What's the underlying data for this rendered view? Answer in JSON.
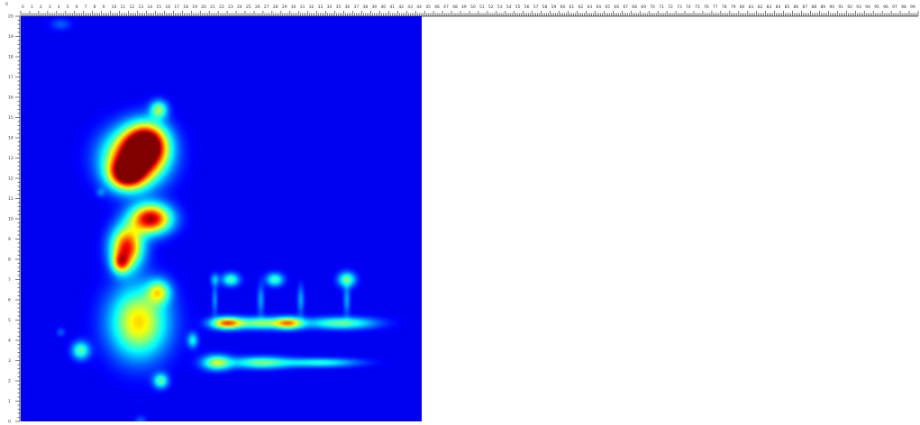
{
  "chart_data": {
    "type": "heatmap",
    "title": "",
    "xlabel": "",
    "ylabel": "",
    "xlim": [
      0,
      20
    ],
    "ylim": [
      0,
      20
    ],
    "corner_label": "0",
    "x_ruler": {
      "labels": [
        "0",
        "1",
        "2",
        "3",
        "4",
        "5",
        "6",
        "7",
        "8",
        "9",
        "10",
        "11",
        "12",
        "13",
        "14",
        "15",
        "16",
        "17",
        "18",
        "19",
        "20"
      ],
      "extended_labels": [
        "21",
        "22",
        "23",
        "24",
        "25",
        "26",
        "27",
        "28",
        "29",
        "30",
        "31",
        "32",
        "33",
        "34",
        "35",
        "36",
        "37",
        "38",
        "39",
        "40",
        "41",
        "42",
        "43",
        "44",
        "45",
        "46",
        "47",
        "48",
        "49",
        "50",
        "51",
        "52",
        "53",
        "54",
        "55",
        "56",
        "57",
        "58",
        "59",
        "60",
        "61",
        "62",
        "63",
        "64",
        "65",
        "66",
        "67",
        "68",
        "69",
        "70",
        "71",
        "72",
        "73",
        "74",
        "75",
        "76",
        "77",
        "78",
        "79",
        "80",
        "81",
        "82",
        "83",
        "84",
        "85",
        "86",
        "87",
        "88",
        "89",
        "90",
        "91",
        "92",
        "93",
        "94",
        "95",
        "96",
        "97",
        "98",
        "99",
        "100"
      ]
    },
    "y_ticks": [
      "0",
      "1",
      "2",
      "3",
      "4",
      "5",
      "6",
      "7",
      "8",
      "9",
      "10",
      "11",
      "12",
      "13",
      "14",
      "15",
      "16",
      "17",
      "18",
      "19",
      "20"
    ],
    "grid": false,
    "colormap": "jet",
    "background_color": "#00009c",
    "blobs": [
      {
        "x": 5.7,
        "y": 13.0,
        "sx": 1.0,
        "sy": 0.9,
        "peak": 1.0
      },
      {
        "x": 6.3,
        "y": 13.7,
        "sx": 0.7,
        "sy": 0.7,
        "peak": 0.9
      },
      {
        "x": 5.3,
        "y": 12.2,
        "sx": 0.6,
        "sy": 0.5,
        "peak": 0.8
      },
      {
        "x": 6.9,
        "y": 15.4,
        "sx": 0.3,
        "sy": 0.3,
        "peak": 0.45
      },
      {
        "x": 6.5,
        "y": 10.0,
        "sx": 0.7,
        "sy": 0.5,
        "peak": 0.95
      },
      {
        "x": 5.3,
        "y": 8.6,
        "sx": 0.55,
        "sy": 0.7,
        "peak": 0.85
      },
      {
        "x": 5.0,
        "y": 7.8,
        "sx": 0.3,
        "sy": 0.35,
        "peak": 0.5
      },
      {
        "x": 5.9,
        "y": 4.9,
        "sx": 1.0,
        "sy": 1.2,
        "peak": 0.62
      },
      {
        "x": 6.9,
        "y": 6.4,
        "sx": 0.4,
        "sy": 0.4,
        "peak": 0.45
      },
      {
        "x": 3.0,
        "y": 3.5,
        "sx": 0.3,
        "sy": 0.3,
        "peak": 0.4
      },
      {
        "x": 7.0,
        "y": 2.0,
        "sx": 0.25,
        "sy": 0.25,
        "peak": 0.4
      },
      {
        "x": 8.6,
        "y": 4.0,
        "sx": 0.18,
        "sy": 0.25,
        "peak": 0.3
      },
      {
        "x": 10.3,
        "y": 4.85,
        "sx": 0.55,
        "sy": 0.2,
        "peak": 0.75
      },
      {
        "x": 13.4,
        "y": 4.85,
        "sx": 0.5,
        "sy": 0.2,
        "peak": 0.62
      },
      {
        "x": 16.0,
        "y": 4.85,
        "sx": 1.2,
        "sy": 0.2,
        "peak": 0.42
      },
      {
        "x": 12.0,
        "y": 4.85,
        "sx": 0.8,
        "sy": 0.2,
        "peak": 0.45
      },
      {
        "x": 9.8,
        "y": 2.9,
        "sx": 0.5,
        "sy": 0.25,
        "peak": 0.5
      },
      {
        "x": 12.0,
        "y": 2.9,
        "sx": 1.0,
        "sy": 0.2,
        "peak": 0.42
      },
      {
        "x": 15.0,
        "y": 2.9,
        "sx": 1.3,
        "sy": 0.15,
        "peak": 0.33
      },
      {
        "x": 10.5,
        "y": 7.0,
        "sx": 0.3,
        "sy": 0.22,
        "peak": 0.38
      },
      {
        "x": 12.7,
        "y": 7.0,
        "sx": 0.3,
        "sy": 0.22,
        "peak": 0.38
      },
      {
        "x": 16.3,
        "y": 7.0,
        "sx": 0.3,
        "sy": 0.25,
        "peak": 0.42
      },
      {
        "x": 9.7,
        "y": 7.0,
        "sx": 0.15,
        "sy": 0.2,
        "peak": 0.22
      },
      {
        "x": 12.0,
        "y": 6.0,
        "sx": 0.12,
        "sy": 0.5,
        "peak": 0.2
      },
      {
        "x": 14.0,
        "y": 6.0,
        "sx": 0.12,
        "sy": 0.5,
        "peak": 0.2
      },
      {
        "x": 16.3,
        "y": 6.0,
        "sx": 0.12,
        "sy": 0.5,
        "peak": 0.2
      },
      {
        "x": 9.7,
        "y": 6.0,
        "sx": 0.1,
        "sy": 0.5,
        "peak": 0.18
      },
      {
        "x": 2.0,
        "y": 19.6,
        "sx": 0.35,
        "sy": 0.2,
        "peak": 0.12
      },
      {
        "x": 2.0,
        "y": 4.4,
        "sx": 0.15,
        "sy": 0.15,
        "peak": 0.12
      },
      {
        "x": 4.0,
        "y": 11.3,
        "sx": 0.15,
        "sy": 0.15,
        "peak": 0.12
      },
      {
        "x": 6.0,
        "y": 0.0,
        "sx": 0.2,
        "sy": 0.2,
        "peak": 0.12
      }
    ]
  }
}
